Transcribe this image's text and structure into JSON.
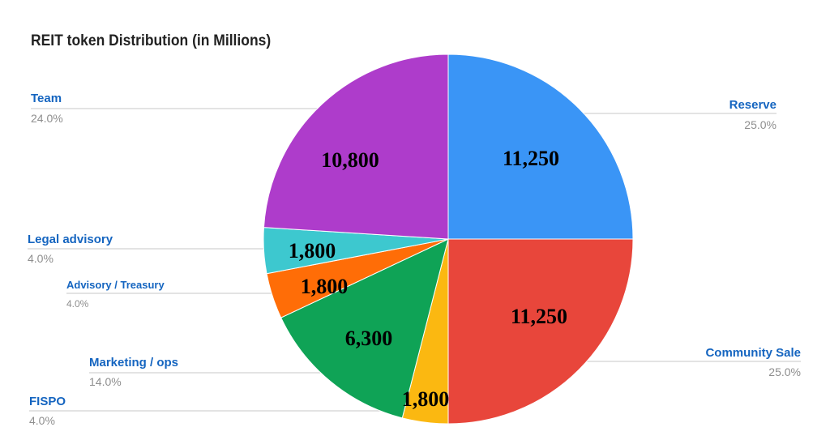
{
  "chart_data": {
    "type": "pie",
    "title": "REIT token Distribution (in Millions)",
    "slices": [
      {
        "label": "Reserve",
        "value": 11250,
        "value_label": "11,250",
        "percent_label": "25.0%",
        "color": "#3a95f6"
      },
      {
        "label": "Community Sale",
        "value": 11250,
        "value_label": "11,250",
        "percent_label": "25.0%",
        "color": "#e8463b"
      },
      {
        "label": "FISPO",
        "value": 1800,
        "value_label": "1,800",
        "percent_label": "4.0%",
        "color": "#fbb811"
      },
      {
        "label": "Marketing / ops",
        "value": 6300,
        "value_label": "6,300",
        "percent_label": "14.0%",
        "color": "#0fa356"
      },
      {
        "label": "Advisory / Treasury",
        "value": 1800,
        "value_label": "1,800",
        "percent_label": "4.0%",
        "color": "#ff6d07"
      },
      {
        "label": "Legal advisory",
        "value": 1800,
        "value_label": "1,800",
        "percent_label": "4.0%",
        "color": "#3dc8cf"
      },
      {
        "label": "Team",
        "value": 10800,
        "value_label": "10,800",
        "percent_label": "24.0%",
        "color": "#ae3ccb"
      }
    ],
    "start_angle": "12 o'clock",
    "direction": "clockwise",
    "legend": "outside labels with leader lines"
  }
}
